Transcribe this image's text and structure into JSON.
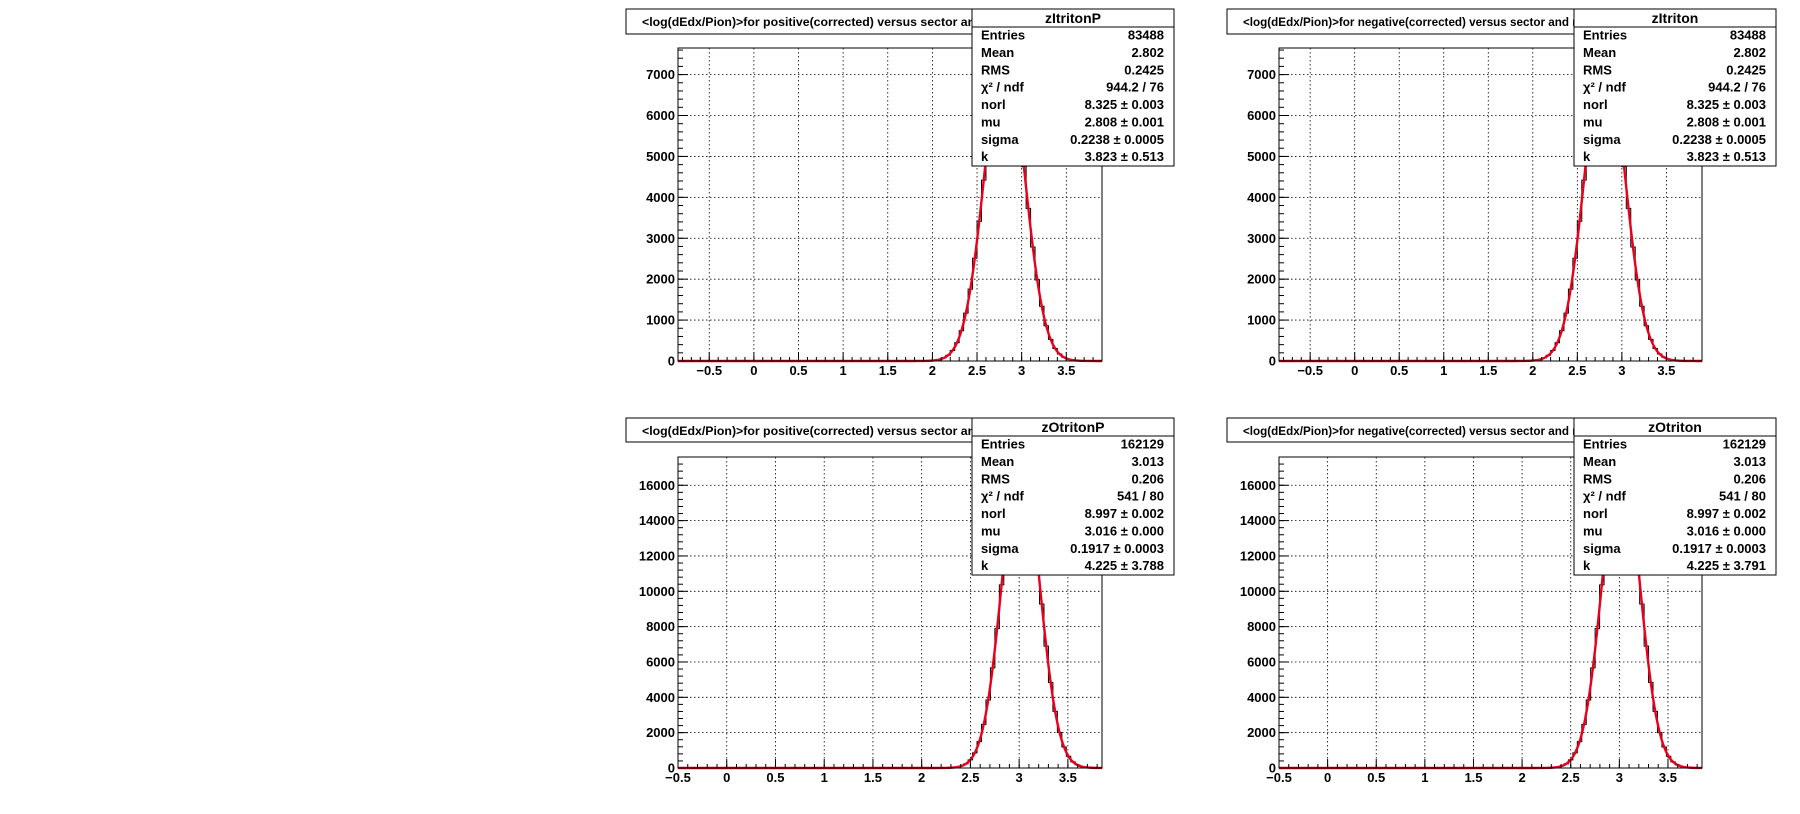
{
  "chart_data": [
    {
      "type": "histogram",
      "name": "zItritonP",
      "title": "<log(dEdx/Pion)>for positive(corrected) versus sector and row",
      "xlim": [
        -0.85,
        3.9
      ],
      "ylim": [
        0,
        7650
      ],
      "x_ticks": [
        "-0.5",
        "0",
        "0.5",
        "1",
        "1.5",
        "2",
        "2.5",
        "3",
        "3.5"
      ],
      "y_ticks": [
        "0",
        "1000",
        "2000",
        "3000",
        "4000",
        "5000",
        "6000",
        "7000"
      ],
      "grid": true,
      "stats_box": {
        "name": "zItritonP",
        "rows": [
          {
            "label": "Entries",
            "value": "83488"
          },
          {
            "label": "Mean",
            "value": "2.802"
          },
          {
            "label": "RMS",
            "value": "0.2425"
          },
          {
            "label": "χ² / ndf",
            "value": "944.2 / 76"
          },
          {
            "label": "norl",
            "value": "8.325 ± 0.003"
          },
          {
            "label": "mu",
            "value": "2.808 ± 0.001"
          },
          {
            "label": "sigma",
            "value": "0.2238 ± 0.0005"
          },
          {
            "label": "k",
            "value": "3.823 ± 0.513"
          }
        ]
      },
      "fit": {
        "norm": 7600,
        "mu": 2.808,
        "sigma": 0.2238
      }
    },
    {
      "type": "histogram",
      "name": "zItriton",
      "title": "<log(dEdx/Pion)>for negative(corrected) versus sector and row",
      "xlim": [
        -0.85,
        3.9
      ],
      "ylim": [
        0,
        7650
      ],
      "x_ticks": [
        "-0.5",
        "0",
        "0.5",
        "1",
        "1.5",
        "2",
        "2.5",
        "3",
        "3.5"
      ],
      "y_ticks": [
        "0",
        "1000",
        "2000",
        "3000",
        "4000",
        "5000",
        "6000",
        "7000"
      ],
      "grid": true,
      "stats_box": {
        "name": "zItriton",
        "rows": [
          {
            "label": "Entries",
            "value": "83488"
          },
          {
            "label": "Mean",
            "value": "2.802"
          },
          {
            "label": "RMS",
            "value": "0.2425"
          },
          {
            "label": "χ² / ndf",
            "value": "944.2 / 76"
          },
          {
            "label": "norl",
            "value": "8.325 ± 0.003"
          },
          {
            "label": "mu",
            "value": "2.808 ± 0.001"
          },
          {
            "label": "sigma",
            "value": "0.2238 ± 0.0005"
          },
          {
            "label": "k",
            "value": "3.823 ± 0.513"
          }
        ]
      },
      "fit": {
        "norm": 7600,
        "mu": 2.808,
        "sigma": 0.2238
      }
    },
    {
      "type": "histogram",
      "name": "zOtritonP",
      "title": "<log(dEdx/Pion)>for positive(corrected) versus sector and row",
      "xlim": [
        -0.5,
        3.85
      ],
      "ylim": [
        0,
        17600
      ],
      "x_ticks": [
        "-0.5",
        "0",
        "0.5",
        "1",
        "1.5",
        "2",
        "2.5",
        "3",
        "3.5"
      ],
      "y_ticks": [
        "0",
        "2000",
        "4000",
        "6000",
        "8000",
        "10000",
        "12000",
        "14000",
        "16000"
      ],
      "grid": true,
      "stats_box": {
        "name": "zOtritonP",
        "rows": [
          {
            "label": "Entries",
            "value": "162129"
          },
          {
            "label": "Mean",
            "value": "3.013"
          },
          {
            "label": "RMS",
            "value": "0.206"
          },
          {
            "label": "χ² / ndf",
            "value": "541 / 80"
          },
          {
            "label": "norl",
            "value": "8.997 ± 0.002"
          },
          {
            "label": "mu",
            "value": "3.016 ± 0.000"
          },
          {
            "label": "sigma",
            "value": "0.1917 ± 0.0003"
          },
          {
            "label": "k",
            "value": "4.225 ± 3.788"
          }
        ]
      },
      "fit": {
        "norm": 17500,
        "mu": 3.016,
        "sigma": 0.1917
      }
    },
    {
      "type": "histogram",
      "name": "zOtriton",
      "title": "<log(dEdx/Pion)>for negative(corrected) versus sector and row",
      "xlim": [
        -0.5,
        3.85
      ],
      "ylim": [
        0,
        17600
      ],
      "x_ticks": [
        "-0.5",
        "0",
        "0.5",
        "1",
        "1.5",
        "2",
        "2.5",
        "3",
        "3.5"
      ],
      "y_ticks": [
        "0",
        "2000",
        "4000",
        "6000",
        "8000",
        "10000",
        "12000",
        "14000",
        "16000"
      ],
      "grid": true,
      "stats_box": {
        "name": "zOtriton",
        "rows": [
          {
            "label": "Entries",
            "value": "162129"
          },
          {
            "label": "Mean",
            "value": "3.013"
          },
          {
            "label": "RMS",
            "value": "0.206"
          },
          {
            "label": "χ² / ndf",
            "value": "541 / 80"
          },
          {
            "label": "norl",
            "value": "8.997 ± 0.002"
          },
          {
            "label": "mu",
            "value": "3.016 ± 0.000"
          },
          {
            "label": "sigma",
            "value": "0.1917 ± 0.0003"
          },
          {
            "label": "k",
            "value": "4.225 ± 3.791"
          }
        ]
      },
      "fit": {
        "norm": 17500,
        "mu": 3.016,
        "sigma": 0.1917
      }
    }
  ],
  "colors": {
    "fit_line": "#e8001c",
    "histogram": "#000000",
    "grid": "#000000",
    "background": "#ffffff"
  }
}
